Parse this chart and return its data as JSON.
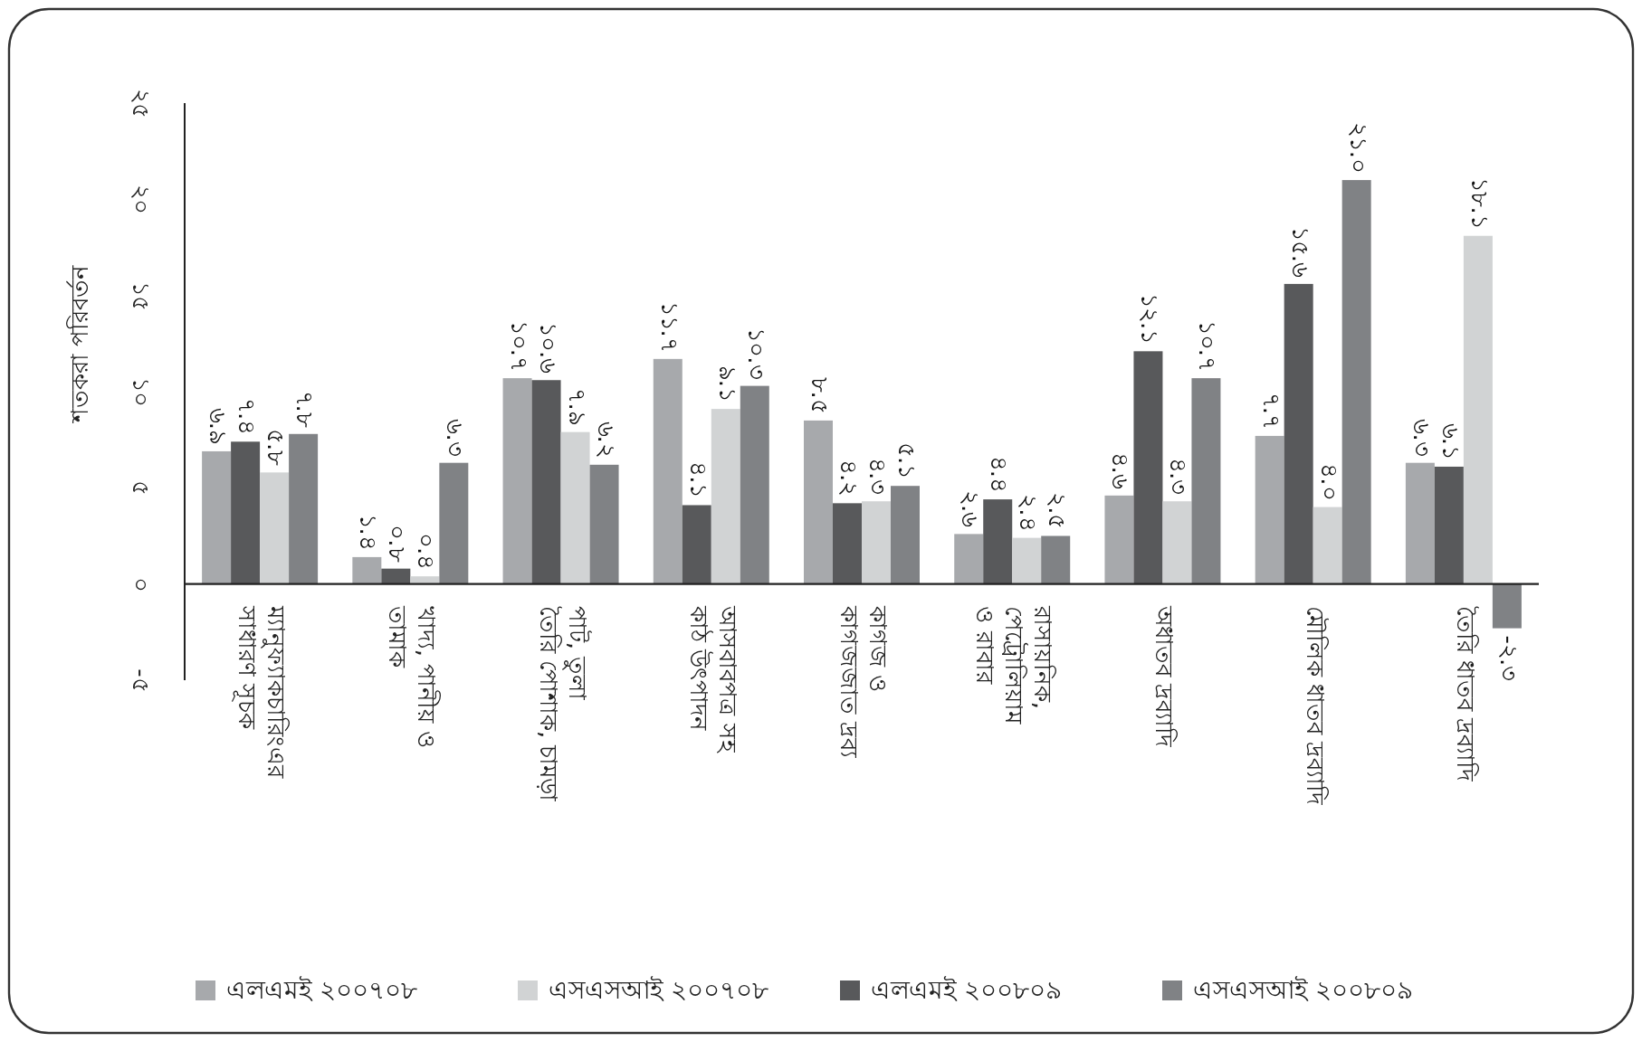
{
  "chart_data": {
    "type": "bar",
    "ylabel": "শতকরা পরিবর্তন",
    "categories": [
      "ম্যানুফ্যাকচারিংএর\nসাধারণ সূচক",
      "খাদ্য, পানীয় ও\nতামাক",
      "পাট, তুলা\nতৈরি পোশাক, চামড়া",
      "আসবাবপত্র সহ\nকাঠ উৎপাদন",
      "কাগজ ও\nকাগজজাত দ্রব্য",
      "রাসায়নিক,\nপেট্রোলিয়াম\nও রাবার",
      "অধাতব দ্রব্যাদি",
      "মৌলিক ধাতব দ্রব্যাদি",
      "তৈরি ধাতব দ্রব্যাদি"
    ],
    "series": [
      {
        "name": "এলএমই ২০০৭০৮",
        "color": "#a7a9ac",
        "values": [
          6.9,
          1.4,
          10.7,
          11.7,
          8.5,
          2.6,
          4.6,
          7.7,
          6.3
        ],
        "value_labels": [
          "৬.৯",
          "১.৪",
          "১০.৭",
          "১১.৭",
          "৮.৫",
          "২.৬",
          "৪.৬",
          "৭.৭",
          "৬.৩"
        ]
      },
      {
        "name": "এলএমই ২০০৮০৯",
        "color": "#58595b",
        "values": [
          7.4,
          0.8,
          10.6,
          4.1,
          4.2,
          4.4,
          12.1,
          15.6,
          6.1
        ],
        "value_labels": [
          "৭.৪",
          "০.৮",
          "১০.৬",
          "৪.১",
          "৪.২",
          "৪.৪",
          "১২.১",
          "১৫.৬",
          "৬.১"
        ]
      },
      {
        "name": "এসএসআই ২০০৭০৮",
        "color": "#d1d3d4",
        "values": [
          5.8,
          0.4,
          7.9,
          9.1,
          4.3,
          2.4,
          4.3,
          4.0,
          18.1
        ],
        "value_labels": [
          "৫.৮",
          "০.৪",
          "৭.৯",
          "৯.১",
          "৪.৩",
          "২.৪",
          "৪.৩",
          "৪.০",
          "১৮.১"
        ]
      },
      {
        "name": "এসএসআই ২০০৮০৯",
        "color": "#808285",
        "values": [
          7.8,
          6.3,
          6.2,
          10.3,
          5.1,
          2.5,
          10.7,
          21.0,
          -2.3
        ],
        "value_labels": [
          "৭.৮",
          "৬.৩",
          "৬.২",
          "১০.৩",
          "৫.১",
          "২.৫",
          "১০.৭",
          "২১.০",
          "-২.৩"
        ]
      }
    ],
    "ylim": [
      -5,
      25
    ],
    "yticks": [
      {
        "value": -5,
        "label": "-৫"
      },
      {
        "value": 0,
        "label": "০"
      },
      {
        "value": 5,
        "label": "৫"
      },
      {
        "value": 10,
        "label": "১০"
      },
      {
        "value": 15,
        "label": "১৫"
      },
      {
        "value": 20,
        "label": "২০"
      },
      {
        "value": 25,
        "label": "২৫"
      }
    ],
    "legend": "bottom",
    "grid": false
  }
}
